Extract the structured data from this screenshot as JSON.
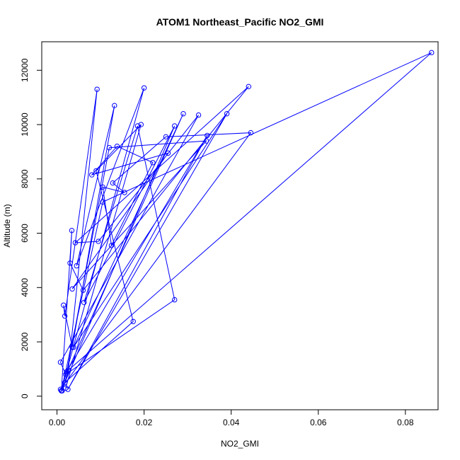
{
  "chart_data": {
    "type": "line",
    "title": "ATOM1 Northeast_Pacific NO2_GMI",
    "xlabel": "NO2_GMI",
    "ylabel": "Altitude (m)",
    "xlim": [
      -0.0035,
      0.0875
    ],
    "ylim": [
      -500,
      13050
    ],
    "x_ticks": [
      0.0,
      0.02,
      0.04,
      0.06,
      0.08
    ],
    "x_tick_labels": [
      "0.00",
      "0.02",
      "0.04",
      "0.06",
      "0.08"
    ],
    "y_ticks": [
      0,
      2000,
      4000,
      6000,
      8000,
      10000,
      12000
    ],
    "y_tick_labels": [
      "0",
      "2000",
      "4000",
      "6000",
      "8000",
      "10000",
      "12000"
    ],
    "grid": false,
    "legend": "none",
    "series": [
      {
        "color": "#0000ff",
        "marker": "open-circle",
        "x": [
          0.0012,
          0.0026,
          0.0092,
          0.0018,
          0.0015,
          0.0035,
          0.0132,
          0.0045,
          0.02,
          0.001,
          0.0034,
          0.003,
          0.006,
          0.044,
          0.0042,
          0.0095,
          0.0325,
          0.0008,
          0.002,
          0.027,
          0.0185,
          0.0062,
          0.027,
          0.001,
          0.0105,
          0.086,
          0.0022,
          0.0345,
          0.0025,
          0.039,
          0.0038,
          0.029,
          0.0022,
          0.012,
          0.0343,
          0.0035,
          0.0255,
          0.008,
          0.0138,
          0.022,
          0.0125,
          0.0105,
          0.0155,
          0.0128,
          0.025,
          0.0445,
          0.0008,
          0.0018,
          0.0175,
          0.009,
          0.0193,
          0.002
        ],
        "y": [
          200,
          950,
          11300,
          2950,
          3350,
          1800,
          10700,
          4800,
          11350,
          200,
          6100,
          4900,
          3900,
          11400,
          5650,
          5700,
          10350,
          1250,
          800,
          3550,
          9950,
          3450,
          9950,
          200,
          7150,
          12650,
          900,
          9600,
          250,
          10400,
          1800,
          10400,
          850,
          9150,
          9400,
          3950,
          8950,
          8150,
          9200,
          8600,
          5550,
          7700,
          7500,
          7850,
          9550,
          9700,
          250,
          500,
          2750,
          8300,
          10000,
          300
        ]
      }
    ]
  }
}
